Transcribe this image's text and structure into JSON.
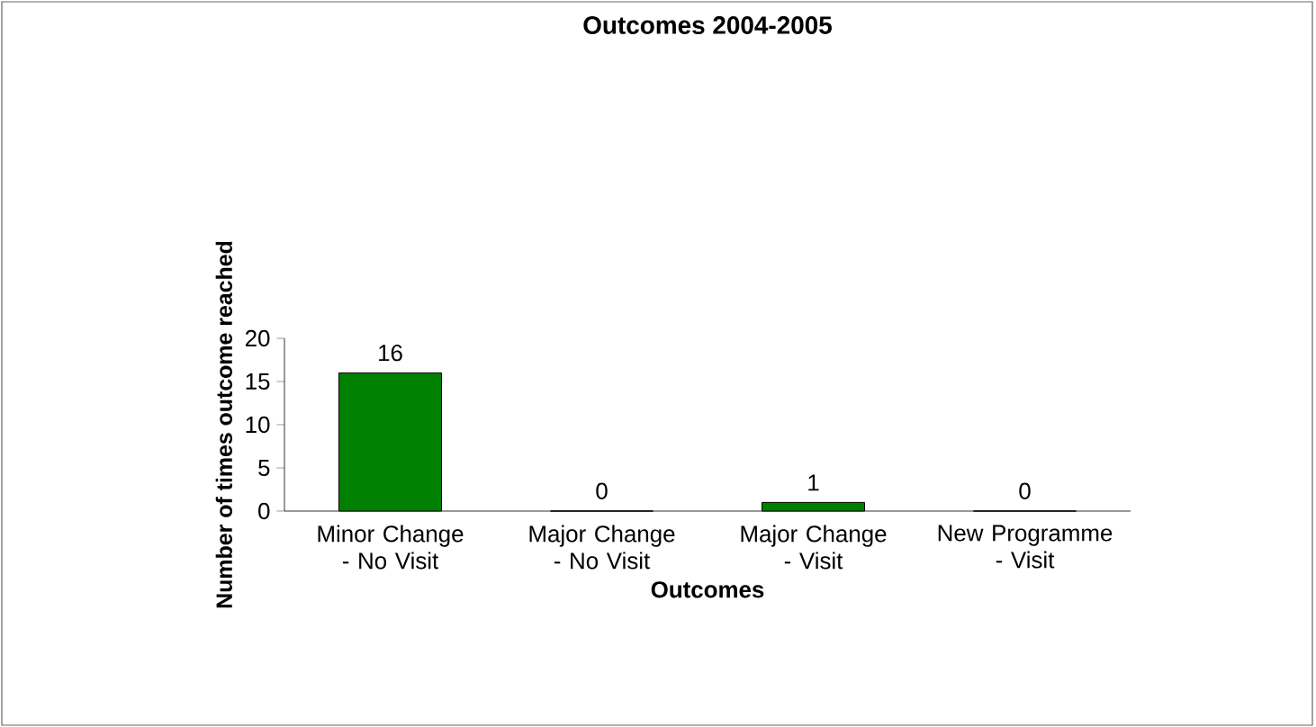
{
  "chart_data": {
    "type": "bar",
    "title": "Outcomes 2004-2005",
    "xlabel": "Outcomes",
    "ylabel": "Number of times outcome reached",
    "categories": [
      "Minor Change - No Visit",
      "Major Change - No Visit",
      "Major Change - Visit",
      "New Programme - Visit"
    ],
    "values": [
      16,
      0,
      1,
      0
    ],
    "color": "#008000",
    "data_labels": true,
    "ylim": [
      0,
      20
    ],
    "yticks": [
      0,
      5,
      10,
      15,
      20
    ],
    "grid": false
  }
}
